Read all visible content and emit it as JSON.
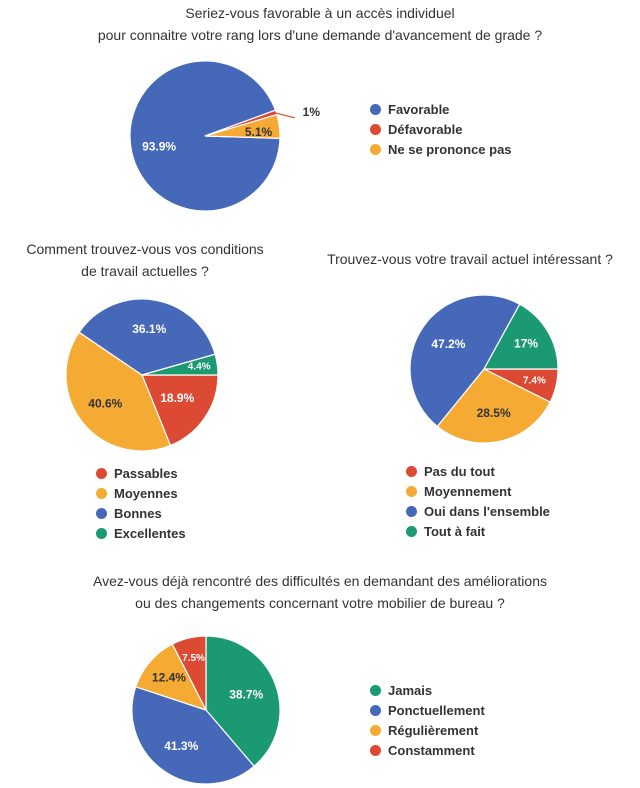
{
  "colors": {
    "blue": "#4668b8",
    "red": "#dc4a34",
    "orange": "#f4aa33",
    "green": "#1a9972"
  },
  "chart_data": [
    {
      "type": "pie",
      "title_lines": [
        "Seriez-vous favorable à un accès individuel",
        "pour connaitre votre rang lors d'une demande d'avancement de grade ?"
      ],
      "slices": [
        {
          "label": "Favorable",
          "value": 93.9,
          "text": "93.9%",
          "color": "#4668b8"
        },
        {
          "label": "Défavorable",
          "value": 1.0,
          "text": "1%",
          "color": "#dc4a34"
        },
        {
          "label": "Ne se prononce pas",
          "value": 5.1,
          "text": "5.1%",
          "color": "#f4aa33"
        }
      ]
    },
    {
      "type": "pie",
      "title_lines": [
        "Comment trouvez-vous vos conditions",
        "de travail actuelles ?"
      ],
      "slices": [
        {
          "label": "Passables",
          "value": 18.9,
          "text": "18.9%",
          "color": "#dc4a34"
        },
        {
          "label": "Moyennes",
          "value": 40.6,
          "text": "40.6%",
          "color": "#f4aa33"
        },
        {
          "label": "Bonnes",
          "value": 36.1,
          "text": "36.1%",
          "color": "#4668b8"
        },
        {
          "label": "Excellentes",
          "value": 4.4,
          "text": "4.4%",
          "color": "#1a9972"
        }
      ]
    },
    {
      "type": "pie",
      "title_lines": [
        "Trouvez-vous votre travail actuel intéressant ?"
      ],
      "slices": [
        {
          "label": "Pas du tout",
          "value": 7.4,
          "text": "7.4%",
          "color": "#dc4a34"
        },
        {
          "label": "Moyennement",
          "value": 28.5,
          "text": "28.5%",
          "color": "#f4aa33"
        },
        {
          "label": "Oui dans l'ensemble",
          "value": 47.2,
          "text": "47.2%",
          "color": "#4668b8"
        },
        {
          "label": "Tout à fait",
          "value": 17.0,
          "text": "17%",
          "color": "#1a9972"
        }
      ]
    },
    {
      "type": "pie",
      "title_lines": [
        "Avez-vous déjà rencontré des difficultés en demandant des améliorations",
        "ou des changements concernant votre mobilier de bureau ?"
      ],
      "slices": [
        {
          "label": "Jamais",
          "value": 38.7,
          "text": "38.7%",
          "color": "#1a9972"
        },
        {
          "label": "Ponctuellement",
          "value": 41.3,
          "text": "41.3%",
          "color": "#4668b8"
        },
        {
          "label": "Régulièrement",
          "value": 12.4,
          "text": "12.4%",
          "color": "#f4aa33"
        },
        {
          "label": "Constamment",
          "value": 7.5,
          "text": "7.5%",
          "color": "#dc4a34"
        }
      ]
    }
  ]
}
